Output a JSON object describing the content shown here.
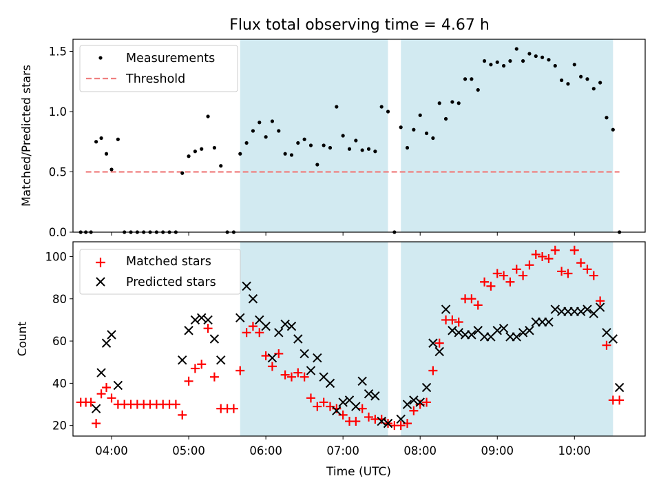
{
  "figure_title": "Flux total observing time = 4.67 h",
  "chart_data": [
    {
      "type": "scatter",
      "panel": "top",
      "ylabel": "Matched/Predicted stars",
      "ylim": [
        0,
        1.6
      ],
      "yticks": [
        0.0,
        0.5,
        1.0,
        1.5
      ],
      "yticklabels": [
        "0.0",
        "0.5",
        "1.0",
        "1.5"
      ],
      "xlim": [
        "03:30",
        "10:55"
      ],
      "shaded_regions": [
        [
          "05:40",
          "07:35"
        ],
        [
          "07:45",
          "10:30"
        ]
      ],
      "shade_color": "#add8e6",
      "threshold": {
        "name": "Threshold",
        "value": 0.5,
        "x_range": [
          "03:40",
          "10:35"
        ],
        "color": "#f08080"
      },
      "series": [
        {
          "name": "Measurements",
          "color": "#000000",
          "marker": "dot",
          "points": [
            [
              "03:36",
              0
            ],
            [
              "03:40",
              0
            ],
            [
              "03:44",
              0
            ],
            [
              "03:48",
              0.75
            ],
            [
              "03:52",
              0.78
            ],
            [
              "03:56",
              0.65
            ],
            [
              "04:00",
              0.52
            ],
            [
              "04:05",
              0.77
            ],
            [
              "04:10",
              0
            ],
            [
              "04:15",
              0
            ],
            [
              "04:20",
              0
            ],
            [
              "04:25",
              0
            ],
            [
              "04:30",
              0
            ],
            [
              "04:35",
              0
            ],
            [
              "04:40",
              0
            ],
            [
              "04:45",
              0
            ],
            [
              "04:50",
              0
            ],
            [
              "04:55",
              0.49
            ],
            [
              "05:00",
              0.63
            ],
            [
              "05:05",
              0.67
            ],
            [
              "05:10",
              0.69
            ],
            [
              "05:15",
              0.96
            ],
            [
              "05:20",
              0.7
            ],
            [
              "05:25",
              0.55
            ],
            [
              "05:30",
              0
            ],
            [
              "05:35",
              0
            ],
            [
              "05:40",
              0.65
            ],
            [
              "05:45",
              0.74
            ],
            [
              "05:50",
              0.84
            ],
            [
              "05:55",
              0.91
            ],
            [
              "06:00",
              0.79
            ],
            [
              "06:05",
              0.92
            ],
            [
              "06:10",
              0.84
            ],
            [
              "06:15",
              0.65
            ],
            [
              "06:20",
              0.64
            ],
            [
              "06:25",
              0.74
            ],
            [
              "06:30",
              0.77
            ],
            [
              "06:35",
              0.72
            ],
            [
              "06:40",
              0.56
            ],
            [
              "06:45",
              0.72
            ],
            [
              "06:50",
              0.7
            ],
            [
              "06:55",
              1.04
            ],
            [
              "07:00",
              0.8
            ],
            [
              "07:05",
              0.69
            ],
            [
              "07:10",
              0.76
            ],
            [
              "07:15",
              0.68
            ],
            [
              "07:20",
              0.69
            ],
            [
              "07:25",
              0.67
            ],
            [
              "07:30",
              1.04
            ],
            [
              "07:35",
              1.0
            ],
            [
              "07:40",
              0
            ],
            [
              "07:45",
              0.87
            ],
            [
              "07:50",
              0.7
            ],
            [
              "07:55",
              0.85
            ],
            [
              "08:00",
              0.97
            ],
            [
              "08:05",
              0.82
            ],
            [
              "08:10",
              0.78
            ],
            [
              "08:15",
              1.07
            ],
            [
              "08:20",
              0.94
            ],
            [
              "08:25",
              1.08
            ],
            [
              "08:30",
              1.07
            ],
            [
              "08:35",
              1.27
            ],
            [
              "08:40",
              1.27
            ],
            [
              "08:45",
              1.18
            ],
            [
              "08:50",
              1.42
            ],
            [
              "08:55",
              1.39
            ],
            [
              "09:00",
              1.41
            ],
            [
              "09:05",
              1.38
            ],
            [
              "09:10",
              1.42
            ],
            [
              "09:15",
              1.52
            ],
            [
              "09:20",
              1.42
            ],
            [
              "09:25",
              1.48
            ],
            [
              "09:30",
              1.46
            ],
            [
              "09:35",
              1.45
            ],
            [
              "09:40",
              1.43
            ],
            [
              "09:45",
              1.38
            ],
            [
              "09:50",
              1.26
            ],
            [
              "09:55",
              1.23
            ],
            [
              "10:00",
              1.39
            ],
            [
              "10:05",
              1.29
            ],
            [
              "10:10",
              1.27
            ],
            [
              "10:15",
              1.19
            ],
            [
              "10:20",
              1.24
            ],
            [
              "10:25",
              0.95
            ],
            [
              "10:30",
              0.85
            ],
            [
              "10:35",
              0
            ]
          ]
        }
      ],
      "legend": {
        "position": "top-left",
        "entries": [
          "Measurements",
          "Threshold"
        ]
      }
    },
    {
      "type": "scatter",
      "panel": "bottom",
      "xlabel": "Time (UTC)",
      "ylabel": "Count",
      "ylim": [
        15,
        107
      ],
      "yticks": [
        20,
        40,
        60,
        80,
        100
      ],
      "yticklabels": [
        "20",
        "40",
        "60",
        "80",
        "100"
      ],
      "xlim": [
        "03:30",
        "10:55"
      ],
      "xticks": [
        "04:00",
        "05:00",
        "06:00",
        "07:00",
        "08:00",
        "09:00",
        "10:00"
      ],
      "shaded_regions": [
        [
          "05:40",
          "07:35"
        ],
        [
          "07:45",
          "10:30"
        ]
      ],
      "shade_color": "#add8e6",
      "series": [
        {
          "name": "Matched stars",
          "color": "#ff0000",
          "marker": "plus",
          "points": [
            [
              "03:36",
              31
            ],
            [
              "03:40",
              31
            ],
            [
              "03:44",
              31
            ],
            [
              "03:48",
              21
            ],
            [
              "03:52",
              35
            ],
            [
              "03:56",
              38
            ],
            [
              "04:00",
              33
            ],
            [
              "04:05",
              30
            ],
            [
              "04:10",
              30
            ],
            [
              "04:15",
              30
            ],
            [
              "04:20",
              30
            ],
            [
              "04:25",
              30
            ],
            [
              "04:30",
              30
            ],
            [
              "04:35",
              30
            ],
            [
              "04:40",
              30
            ],
            [
              "04:45",
              30
            ],
            [
              "04:50",
              30
            ],
            [
              "04:55",
              25
            ],
            [
              "05:00",
              41
            ],
            [
              "05:05",
              47
            ],
            [
              "05:10",
              49
            ],
            [
              "05:15",
              66
            ],
            [
              "05:20",
              43
            ],
            [
              "05:25",
              28
            ],
            [
              "05:30",
              28
            ],
            [
              "05:35",
              28
            ],
            [
              "05:40",
              46
            ],
            [
              "05:45",
              64
            ],
            [
              "05:50",
              67
            ],
            [
              "05:55",
              64
            ],
            [
              "06:00",
              53
            ],
            [
              "06:05",
              48
            ],
            [
              "06:10",
              54
            ],
            [
              "06:15",
              44
            ],
            [
              "06:20",
              43
            ],
            [
              "06:25",
              45
            ],
            [
              "06:30",
              43
            ],
            [
              "06:35",
              33
            ],
            [
              "06:40",
              29
            ],
            [
              "06:45",
              31
            ],
            [
              "06:50",
              29
            ],
            [
              "06:55",
              28
            ],
            [
              "07:00",
              25
            ],
            [
              "07:05",
              22
            ],
            [
              "07:10",
              22
            ],
            [
              "07:15",
              28
            ],
            [
              "07:20",
              24
            ],
            [
              "07:25",
              23
            ],
            [
              "07:30",
              23
            ],
            [
              "07:35",
              21
            ],
            [
              "07:40",
              20
            ],
            [
              "07:45",
              20
            ],
            [
              "07:50",
              21
            ],
            [
              "07:55",
              27
            ],
            [
              "08:00",
              30
            ],
            [
              "08:05",
              31
            ],
            [
              "08:10",
              46
            ],
            [
              "08:15",
              59
            ],
            [
              "08:20",
              70
            ],
            [
              "08:25",
              70
            ],
            [
              "08:30",
              69
            ],
            [
              "08:35",
              80
            ],
            [
              "08:40",
              80
            ],
            [
              "08:45",
              77
            ],
            [
              "08:50",
              88
            ],
            [
              "08:55",
              86
            ],
            [
              "09:00",
              92
            ],
            [
              "09:05",
              91
            ],
            [
              "09:10",
              88
            ],
            [
              "09:15",
              94
            ],
            [
              "09:20",
              91
            ],
            [
              "09:25",
              96
            ],
            [
              "09:30",
              101
            ],
            [
              "09:35",
              100
            ],
            [
              "09:40",
              99
            ],
            [
              "09:45",
              103
            ],
            [
              "09:50",
              93
            ],
            [
              "09:55",
              92
            ],
            [
              "10:00",
              103
            ],
            [
              "10:05",
              97
            ],
            [
              "10:10",
              94
            ],
            [
              "10:15",
              91
            ],
            [
              "10:20",
              79
            ],
            [
              "10:25",
              58
            ],
            [
              "10:30",
              32
            ],
            [
              "10:35",
              32
            ]
          ]
        },
        {
          "name": "Predicted stars",
          "color": "#000000",
          "marker": "x",
          "points": [
            [
              "03:48",
              28
            ],
            [
              "03:52",
              45
            ],
            [
              "03:56",
              59
            ],
            [
              "04:00",
              63
            ],
            [
              "04:05",
              39
            ],
            [
              "04:55",
              51
            ],
            [
              "05:00",
              65
            ],
            [
              "05:05",
              70
            ],
            [
              "05:10",
              71
            ],
            [
              "05:15",
              70
            ],
            [
              "05:20",
              61
            ],
            [
              "05:25",
              51
            ],
            [
              "05:40",
              71
            ],
            [
              "05:45",
              86
            ],
            [
              "05:50",
              80
            ],
            [
              "05:55",
              70
            ],
            [
              "06:00",
              67
            ],
            [
              "06:05",
              52
            ],
            [
              "06:10",
              64
            ],
            [
              "06:15",
              68
            ],
            [
              "06:20",
              67
            ],
            [
              "06:25",
              61
            ],
            [
              "06:30",
              54
            ],
            [
              "06:35",
              46
            ],
            [
              "06:40",
              52
            ],
            [
              "06:45",
              43
            ],
            [
              "06:50",
              40
            ],
            [
              "06:55",
              27
            ],
            [
              "07:00",
              31
            ],
            [
              "07:05",
              32
            ],
            [
              "07:10",
              29
            ],
            [
              "07:15",
              41
            ],
            [
              "07:20",
              35
            ],
            [
              "07:25",
              34
            ],
            [
              "07:30",
              22
            ],
            [
              "07:35",
              21
            ],
            [
              "07:45",
              23
            ],
            [
              "07:50",
              30
            ],
            [
              "07:55",
              32
            ],
            [
              "08:00",
              31
            ],
            [
              "08:05",
              38
            ],
            [
              "08:10",
              59
            ],
            [
              "08:15",
              55
            ],
            [
              "08:20",
              75
            ],
            [
              "08:25",
              65
            ],
            [
              "08:30",
              64
            ],
            [
              "08:35",
              63
            ],
            [
              "08:40",
              63
            ],
            [
              "08:45",
              65
            ],
            [
              "08:50",
              62
            ],
            [
              "08:55",
              62
            ],
            [
              "09:00",
              65
            ],
            [
              "09:05",
              66
            ],
            [
              "09:10",
              62
            ],
            [
              "09:15",
              62
            ],
            [
              "09:20",
              64
            ],
            [
              "09:25",
              65
            ],
            [
              "09:30",
              69
            ],
            [
              "09:35",
              69
            ],
            [
              "09:40",
              69
            ],
            [
              "09:45",
              75
            ],
            [
              "09:50",
              74
            ],
            [
              "09:55",
              74
            ],
            [
              "10:00",
              74
            ],
            [
              "10:05",
              74
            ],
            [
              "10:10",
              75
            ],
            [
              "10:15",
              73
            ],
            [
              "10:20",
              76
            ],
            [
              "10:25",
              64
            ],
            [
              "10:30",
              61
            ],
            [
              "10:35",
              38
            ]
          ]
        }
      ],
      "legend": {
        "position": "top-left",
        "entries": [
          "Matched stars",
          "Predicted stars"
        ]
      }
    }
  ]
}
